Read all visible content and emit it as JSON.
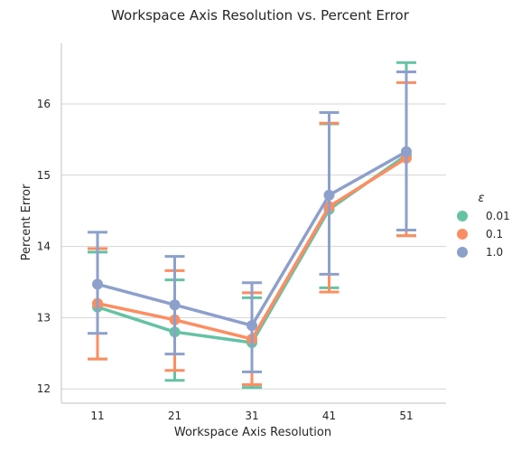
{
  "chart_data": {
    "type": "line",
    "title": "Workspace Axis Resolution vs. Percent Error",
    "xlabel": "Workspace Axis Resolution",
    "ylabel": "Percent Error",
    "categories": [
      "11",
      "21",
      "31",
      "41",
      "51"
    ],
    "yticks": [
      "12",
      "13",
      "14",
      "15",
      "16"
    ],
    "ylim": [
      11.8,
      16.85
    ],
    "grid": "horizontal",
    "error_bars": "capped",
    "legend": {
      "title": "ε",
      "placement": "right"
    },
    "series": [
      {
        "name": "0.01",
        "color": "#66c2a5",
        "values": [
          13.15,
          12.8,
          12.65,
          14.52,
          15.28
        ],
        "err_low": [
          12.42,
          12.12,
          12.02,
          13.42,
          14.15
        ],
        "err_high": [
          13.92,
          13.53,
          13.28,
          15.72,
          16.58
        ]
      },
      {
        "name": "0.1",
        "color": "#fc8d62",
        "values": [
          13.2,
          12.97,
          12.7,
          14.56,
          15.24
        ],
        "err_low": [
          12.42,
          12.26,
          12.06,
          13.36,
          14.15
        ],
        "err_high": [
          13.97,
          13.66,
          13.35,
          15.73,
          16.3
        ]
      },
      {
        "name": "1.0",
        "color": "#8da0cb",
        "values": [
          13.47,
          13.18,
          12.89,
          14.72,
          15.33
        ],
        "err_low": [
          12.78,
          12.49,
          12.24,
          13.61,
          14.23
        ],
        "err_high": [
          14.2,
          13.86,
          13.49,
          15.88,
          16.45
        ]
      }
    ]
  }
}
